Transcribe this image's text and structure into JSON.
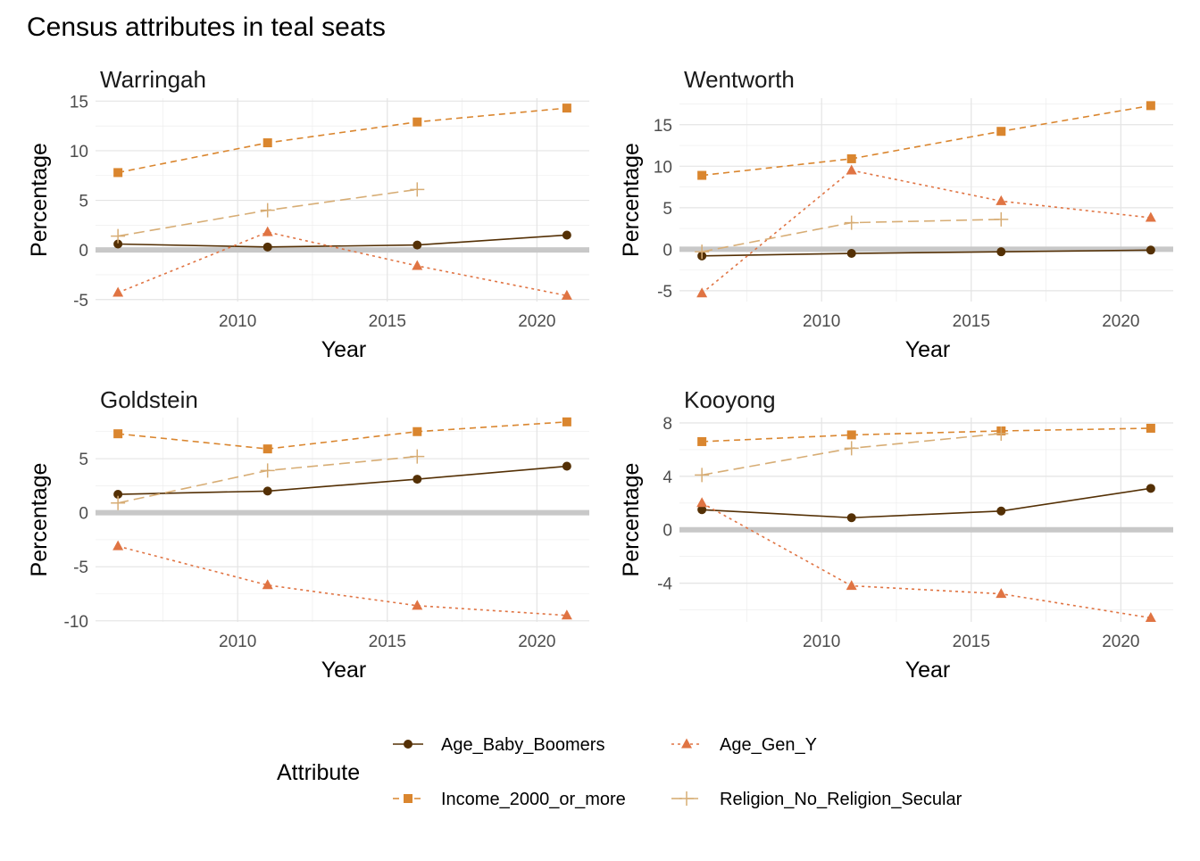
{
  "chart_data": {
    "type": "line",
    "title": "Census attributes in teal seats",
    "legend": {
      "title": "Attribute",
      "placement": "bottom"
    },
    "series_styles": [
      {
        "name": "Age_Baby_Boomers",
        "color": "#543005",
        "marker": "circle",
        "dash": "solid"
      },
      {
        "name": "Age_Gen_Y",
        "color": "#E07443",
        "marker": "triangle",
        "dash": "dotted"
      },
      {
        "name": "Income_2000_or_more",
        "color": "#DA862F",
        "marker": "square",
        "dash": "dashed"
      },
      {
        "name": "Religion_No_Religion_Secular",
        "color": "#D7AD75",
        "marker": "plus",
        "dash": "longdash"
      }
    ],
    "panels": [
      {
        "title": "Warringah",
        "xlabel": "Year",
        "ylabel": "Percentage",
        "xlim": [
          2005.25,
          2021.75
        ],
        "ylim": [
          -5.2,
          15.3
        ],
        "xticks": [
          2010,
          2015,
          2020
        ],
        "yticks": [
          -5,
          0,
          5,
          10,
          15
        ],
        "grid": true,
        "series": [
          {
            "name": "Age_Baby_Boomers",
            "x": [
              2006,
              2011,
              2016,
              2021
            ],
            "y": [
              0.6,
              0.3,
              0.5,
              1.5
            ]
          },
          {
            "name": "Age_Gen_Y",
            "x": [
              2006,
              2011,
              2016,
              2021
            ],
            "y": [
              -4.3,
              1.8,
              -1.6,
              -4.6
            ]
          },
          {
            "name": "Income_2000_or_more",
            "x": [
              2006,
              2011,
              2016,
              2021
            ],
            "y": [
              7.8,
              10.8,
              12.9,
              14.3
            ]
          },
          {
            "name": "Religion_No_Religion_Secular",
            "x": [
              2006,
              2011,
              2016
            ],
            "y": [
              1.4,
              4.0,
              6.1
            ]
          }
        ]
      },
      {
        "title": "Wentworth",
        "xlabel": "Year",
        "ylabel": "Percentage",
        "xlim": [
          2005.25,
          2021.75
        ],
        "ylim": [
          -6.3,
          18.2
        ],
        "xticks": [
          2010,
          2015,
          2020
        ],
        "yticks": [
          -5,
          0,
          5,
          10,
          15
        ],
        "grid": true,
        "series": [
          {
            "name": "Age_Baby_Boomers",
            "x": [
              2006,
              2011,
              2016,
              2021
            ],
            "y": [
              -0.8,
              -0.5,
              -0.3,
              -0.1
            ]
          },
          {
            "name": "Age_Gen_Y",
            "x": [
              2006,
              2011,
              2016,
              2021
            ],
            "y": [
              -5.3,
              9.5,
              5.8,
              3.8
            ]
          },
          {
            "name": "Income_2000_or_more",
            "x": [
              2006,
              2011,
              2016,
              2021
            ],
            "y": [
              8.9,
              10.9,
              14.2,
              17.3
            ]
          },
          {
            "name": "Religion_No_Religion_Secular",
            "x": [
              2006,
              2011,
              2016
            ],
            "y": [
              -0.3,
              3.2,
              3.6
            ]
          }
        ]
      },
      {
        "title": "Goldstein",
        "xlabel": "Year",
        "ylabel": "Percentage",
        "xlim": [
          2005.25,
          2021.75
        ],
        "ylim": [
          -10.1,
          8.8
        ],
        "xticks": [
          2010,
          2015,
          2020
        ],
        "yticks": [
          -10,
          -5,
          0,
          5
        ],
        "grid": true,
        "series": [
          {
            "name": "Age_Baby_Boomers",
            "x": [
              2006,
              2011,
              2016,
              2021
            ],
            "y": [
              1.7,
              2.0,
              3.1,
              4.3
            ]
          },
          {
            "name": "Age_Gen_Y",
            "x": [
              2006,
              2011,
              2016,
              2021
            ],
            "y": [
              -3.1,
              -6.7,
              -8.6,
              -9.5
            ]
          },
          {
            "name": "Income_2000_or_more",
            "x": [
              2006,
              2011,
              2016,
              2021
            ],
            "y": [
              7.3,
              5.9,
              7.5,
              8.4
            ]
          },
          {
            "name": "Religion_No_Religion_Secular",
            "x": [
              2006,
              2011,
              2016
            ],
            "y": [
              0.9,
              3.9,
              5.2
            ]
          }
        ]
      },
      {
        "title": "Kooyong",
        "xlabel": "Year",
        "ylabel": "Percentage",
        "xlim": [
          2005.25,
          2021.75
        ],
        "ylim": [
          -6.9,
          8.4
        ],
        "xticks": [
          2010,
          2015,
          2020
        ],
        "yticks": [
          -4,
          0,
          4,
          8
        ],
        "grid": true,
        "series": [
          {
            "name": "Age_Baby_Boomers",
            "x": [
              2006,
              2011,
              2016,
              2021
            ],
            "y": [
              1.5,
              0.9,
              1.4,
              3.1
            ]
          },
          {
            "name": "Age_Gen_Y",
            "x": [
              2006,
              2011,
              2016,
              2021
            ],
            "y": [
              2.0,
              -4.2,
              -4.8,
              -6.6
            ]
          },
          {
            "name": "Income_2000_or_more",
            "x": [
              2006,
              2011,
              2016,
              2021
            ],
            "y": [
              6.6,
              7.1,
              7.4,
              7.6
            ]
          },
          {
            "name": "Religion_No_Religion_Secular",
            "x": [
              2006,
              2011,
              2016
            ],
            "y": [
              4.1,
              6.1,
              7.2
            ]
          }
        ]
      }
    ]
  }
}
